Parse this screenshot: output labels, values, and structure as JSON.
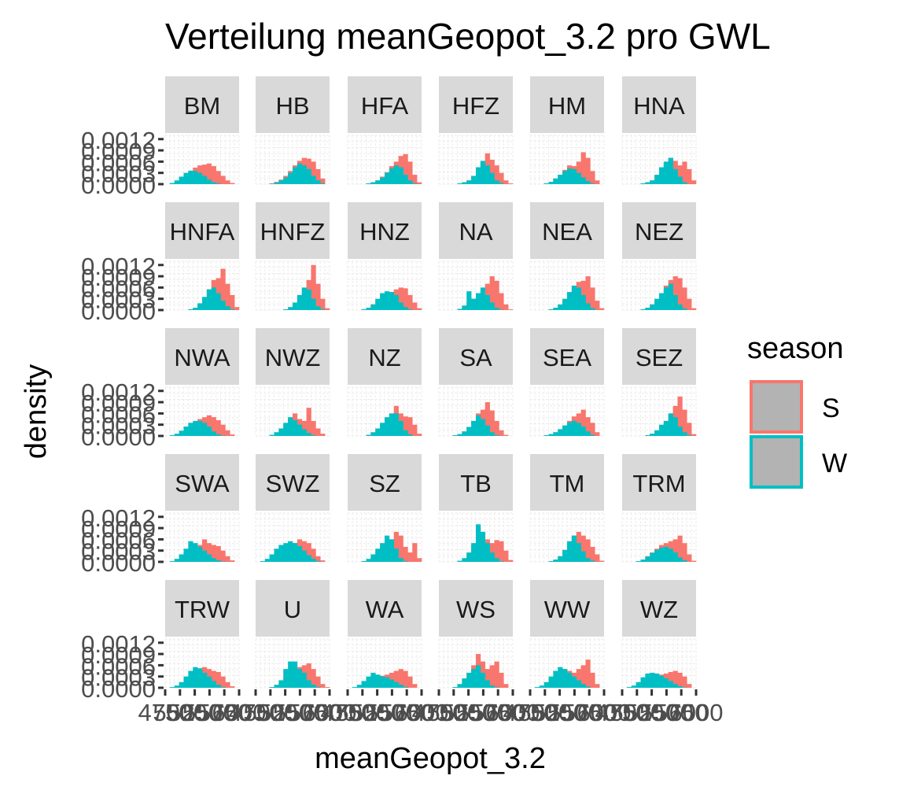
{
  "chart_data": {
    "type": "histogram",
    "facet_type": "wrap",
    "ncol": 6,
    "title": "Verteilung meanGeopot_3.2 pro GWL",
    "xlabel": "meanGeopot_3.2",
    "ylabel": "density",
    "legend": {
      "title": "season",
      "position": "right",
      "entries": [
        {
          "key": "S",
          "color": "#F8766D"
        },
        {
          "key": "W",
          "color": "#00BFC4"
        }
      ]
    },
    "colors": {
      "S": "#F8766D",
      "W": "#00BFC4",
      "panel_bg": "#FFFFFF",
      "strip_bg": "#D9D9D9",
      "grid": "#EBEBEB"
    },
    "grid": true,
    "xlim": [
      4750,
      6000
    ],
    "ylim": [
      0,
      0.0013
    ],
    "y_ticks": [
      0.0,
      0.0003,
      0.0006,
      0.0009,
      0.0012
    ],
    "y_tick_labels": [
      "0.0000",
      "0.0003",
      "0.0006",
      "0.0009",
      "0.0012"
    ],
    "x_ticks": [
      4750,
      5000,
      5250,
      5500,
      5750,
      6000
    ],
    "x_tick_labels": [
      "4750",
      "5000",
      "5250",
      "5500",
      "5750",
      "6000"
    ],
    "bin_count": 16,
    "panels": [
      {
        "name": "BM",
        "S": [
          0,
          0,
          3e-05,
          8e-05,
          0.00018,
          0.00032,
          0.00044,
          0.0005,
          0.00052,
          0.00055,
          0.00048,
          0.00035,
          0.00022,
          0.0001,
          3e-05,
          0
        ],
        "W": [
          0,
          3e-05,
          0.0001,
          0.0002,
          0.0003,
          0.00036,
          0.00035,
          0.0003,
          0.00022,
          0.00012,
          5e-05,
          2e-05,
          0,
          0,
          0,
          0
        ]
      },
      {
        "name": "HB",
        "S": [
          0,
          0,
          0,
          2e-05,
          6e-05,
          0.00012,
          0.00022,
          0.00035,
          0.0005,
          0.00062,
          0.0007,
          0.00068,
          0.0006,
          0.0004,
          0.00015,
          0
        ],
        "W": [
          0,
          0,
          0,
          1e-05,
          4e-05,
          0.0001,
          0.00018,
          0.0003,
          0.00045,
          0.00055,
          0.0005,
          0.0004,
          0.00022,
          0.0001,
          2e-05,
          0
        ]
      },
      {
        "name": "HFA",
        "S": [
          0,
          0,
          0,
          0,
          2e-05,
          5e-05,
          0.0001,
          0.0002,
          0.00032,
          0.00048,
          0.0006,
          0.00075,
          0.0008,
          0.0006,
          0.00025,
          5e-05
        ],
        "W": [
          0,
          0,
          0,
          0,
          2e-05,
          5e-05,
          0.0001,
          0.00018,
          0.0003,
          0.00042,
          0.0005,
          0.00045,
          0.00025,
          0.0001,
          2e-05,
          0
        ]
      },
      {
        "name": "HFZ",
        "S": [
          0,
          0,
          0,
          0,
          2e-05,
          5e-05,
          0.0001,
          0.00022,
          0.00038,
          0.0006,
          0.00082,
          0.00065,
          0.0005,
          0.0003,
          0.0001,
          2e-05
        ],
        "W": [
          0,
          0,
          0,
          0,
          2e-05,
          5e-05,
          0.0001,
          0.00022,
          0.00045,
          0.00062,
          0.0005,
          0.0003,
          0.0001,
          3e-05,
          0,
          0
        ]
      },
      {
        "name": "HM",
        "S": [
          0,
          0,
          0,
          2e-05,
          6e-05,
          0.00015,
          0.00025,
          0.00038,
          0.0005,
          0.00048,
          0.0006,
          0.00085,
          0.0007,
          0.00035,
          0.0001,
          0
        ],
        "W": [
          0,
          0,
          0,
          2e-05,
          6e-05,
          0.00015,
          0.00025,
          0.00035,
          0.00042,
          0.0004,
          0.0003,
          0.00018,
          8e-05,
          2e-05,
          0,
          0
        ]
      },
      {
        "name": "HNA",
        "S": [
          0,
          0,
          0,
          0,
          2e-05,
          5e-05,
          0.0001,
          0.00022,
          0.0004,
          0.00055,
          0.0007,
          0.00062,
          0.0005,
          0.0006,
          0.0004,
          0.0001
        ],
        "W": [
          0,
          0,
          0,
          0,
          2e-05,
          5e-05,
          0.0001,
          0.00025,
          0.00045,
          0.0006,
          0.0007,
          0.0004,
          0.0002,
          5e-05,
          0,
          0
        ]
      },
      {
        "name": "HNFA",
        "S": [
          0,
          0,
          0,
          0,
          0,
          2e-05,
          6e-05,
          0.00015,
          0.0003,
          0.00055,
          0.0008,
          0.00085,
          0.0011,
          0.0007,
          0.0004,
          8e-05
        ],
        "W": [
          0,
          0,
          0,
          0,
          0,
          2e-05,
          6e-05,
          0.00018,
          0.00035,
          0.00055,
          0.0006,
          0.00045,
          0.00025,
          0.0001,
          2e-05,
          0
        ]
      },
      {
        "name": "HNFZ",
        "S": [
          0,
          0,
          0,
          0,
          0,
          0,
          2e-05,
          6e-05,
          0.00015,
          0.0003,
          0.0005,
          0.0008,
          0.0012,
          0.0007,
          0.0003,
          5e-05
        ],
        "W": [
          0,
          0,
          0,
          0,
          0,
          0,
          2e-05,
          8e-05,
          0.0002,
          0.0004,
          0.0006,
          0.00055,
          0.0003,
          0.0001,
          2e-05,
          0
        ]
      },
      {
        "name": "HNZ",
        "S": [
          0,
          0,
          0,
          2e-05,
          6e-05,
          0.00015,
          0.00028,
          0.0004,
          0.00045,
          0.00048,
          0.00055,
          0.0006,
          0.00058,
          0.0004,
          0.0002,
          5e-05
        ],
        "W": [
          0,
          0,
          0,
          2e-05,
          6e-05,
          0.00015,
          0.0003,
          0.00045,
          0.0005,
          0.00048,
          0.0004,
          0.0002,
          8e-05,
          2e-05,
          0,
          0
        ]
      },
      {
        "name": "NA",
        "S": [
          0,
          0,
          0,
          0,
          3e-05,
          0.0001,
          0.0002,
          0.0003,
          0.0004,
          0.0005,
          0.0007,
          0.0009,
          0.00078,
          0.00045,
          0.00015,
          2e-05
        ],
        "W": [
          0,
          0,
          0,
          0,
          3e-05,
          0.00012,
          0.0005,
          0.0003,
          0.00045,
          0.0006,
          0.0004,
          0.0002,
          6e-05,
          1e-05,
          0,
          0
        ]
      },
      {
        "name": "NEA",
        "S": [
          0,
          0,
          0,
          0,
          2e-05,
          6e-05,
          0.00014,
          0.00028,
          0.00042,
          0.0006,
          0.00075,
          0.00078,
          0.0009,
          0.0006,
          0.00025,
          5e-05
        ],
        "W": [
          0,
          0,
          0,
          0,
          2e-05,
          6e-05,
          0.00015,
          0.0003,
          0.00048,
          0.00065,
          0.0006,
          0.0004,
          0.00018,
          5e-05,
          0,
          0
        ]
      },
      {
        "name": "NEZ",
        "S": [
          0,
          0,
          0,
          0,
          2e-05,
          6e-05,
          0.00015,
          0.00028,
          0.00045,
          0.00065,
          0.0008,
          0.0009,
          0.00085,
          0.0006,
          0.0003,
          5e-05
        ],
        "W": [
          0,
          0,
          0,
          0,
          2e-05,
          6e-05,
          0.00015,
          0.0003,
          0.00045,
          0.0006,
          0.0007,
          0.0004,
          0.00015,
          4e-05,
          0,
          0
        ]
      },
      {
        "name": "NWA",
        "S": [
          0,
          0,
          2e-05,
          6e-05,
          0.00014,
          0.00025,
          0.00036,
          0.00045,
          0.0005,
          0.00055,
          0.0005,
          0.00042,
          0.0003,
          0.00015,
          4e-05,
          0
        ],
        "W": [
          0,
          2e-05,
          6e-05,
          0.00014,
          0.00025,
          0.00035,
          0.0004,
          0.0004,
          0.00035,
          0.00025,
          0.00012,
          4e-05,
          1e-05,
          0,
          0,
          0
        ]
      },
      {
        "name": "NWZ",
        "S": [
          0,
          0,
          0,
          2e-05,
          8e-05,
          0.00018,
          0.00032,
          0.00048,
          0.0006,
          0.00045,
          0.0004,
          0.00075,
          0.0004,
          0.0002,
          6e-05,
          0
        ],
        "W": [
          0,
          0,
          0,
          3e-05,
          0.0001,
          0.0002,
          0.00035,
          0.0005,
          0.00042,
          0.0003,
          0.00018,
          8e-05,
          2e-05,
          0,
          0,
          0
        ]
      },
      {
        "name": "NZ",
        "S": [
          0,
          0,
          0,
          0,
          3e-05,
          8e-05,
          0.00018,
          0.0003,
          0.00045,
          0.0006,
          0.0008,
          0.0006,
          0.00052,
          0.0005,
          0.0003,
          6e-05
        ],
        "W": [
          0,
          0,
          0,
          0,
          3e-05,
          0.0001,
          0.0002,
          0.00035,
          0.0005,
          0.0006,
          0.0006,
          0.0004,
          0.00015,
          4e-05,
          0,
          0
        ]
      },
      {
        "name": "SA",
        "S": [
          0,
          0,
          0,
          2e-05,
          5e-05,
          0.00012,
          0.00024,
          0.0004,
          0.0006,
          0.0007,
          0.0009,
          0.00068,
          0.0004,
          0.00015,
          3e-05,
          0
        ],
        "W": [
          0,
          0,
          0,
          2e-05,
          5e-05,
          0.00012,
          0.00024,
          0.0004,
          0.00055,
          0.00045,
          0.00028,
          0.0001,
          2e-05,
          0,
          0,
          0
        ]
      },
      {
        "name": "SEA",
        "S": [
          0,
          0,
          0,
          2e-05,
          5e-05,
          0.0001,
          0.00018,
          0.00028,
          0.0004,
          0.00052,
          0.0006,
          0.0007,
          0.0005,
          0.00035,
          0.0001,
          0
        ],
        "W": [
          0,
          0,
          0,
          2e-05,
          5e-05,
          0.0001,
          0.00018,
          0.00028,
          0.00036,
          0.0004,
          0.00035,
          0.00025,
          0.00012,
          3e-05,
          0,
          0
        ]
      },
      {
        "name": "SEZ",
        "S": [
          0,
          0,
          0,
          0,
          0,
          2e-05,
          6e-05,
          0.00014,
          0.00028,
          0.0004,
          0.0006,
          0.0008,
          0.00105,
          0.0007,
          0.00035,
          5e-05
        ],
        "W": [
          0,
          0,
          0,
          0,
          0,
          2e-05,
          6e-05,
          0.00015,
          0.0003,
          0.0004,
          0.0006,
          0.0005,
          0.00025,
          0.0001,
          2e-05,
          0
        ]
      },
      {
        "name": "SWA",
        "S": [
          0,
          0,
          2e-05,
          8e-05,
          0.0002,
          0.0003,
          0.00038,
          0.00045,
          0.0006,
          0.0005,
          0.00045,
          0.00042,
          0.0003,
          0.00015,
          4e-05,
          0
        ],
        "W": [
          0,
          2e-05,
          8e-05,
          0.0002,
          0.00035,
          0.00055,
          0.0005,
          0.0004,
          0.0003,
          0.0002,
          0.0001,
          4e-05,
          1e-05,
          0,
          0,
          0
        ]
      },
      {
        "name": "SWZ",
        "S": [
          0,
          0,
          2e-05,
          8e-05,
          0.00018,
          0.00028,
          0.0004,
          0.00045,
          0.0005,
          0.0006,
          0.00055,
          0.0005,
          0.00035,
          0.00015,
          4e-05,
          0
        ],
        "W": [
          0,
          2e-05,
          8e-05,
          0.0002,
          0.00035,
          0.00045,
          0.0005,
          0.00055,
          0.0005,
          0.00042,
          0.0003,
          0.00018,
          8e-05,
          2e-05,
          0,
          0
        ]
      },
      {
        "name": "SZ",
        "S": [
          0,
          0,
          0,
          2e-05,
          6e-05,
          0.00015,
          0.00028,
          0.0004,
          0.0005,
          0.0006,
          0.0008,
          0.0007,
          0.0004,
          0.00025,
          0.0005,
          0.0001
        ],
        "W": [
          0,
          0,
          0,
          2e-05,
          8e-05,
          0.0002,
          0.00035,
          0.0005,
          0.0007,
          0.0006,
          0.00035,
          0.0001,
          2e-05,
          0,
          0,
          0
        ]
      },
      {
        "name": "TB",
        "S": [
          0,
          0,
          0,
          0,
          2e-05,
          8e-05,
          0.0002,
          0.00045,
          0.0009,
          0.0007,
          0.0006,
          0.0005,
          0.00058,
          0.00055,
          0.0003,
          5e-05
        ],
        "W": [
          0,
          0,
          0,
          0,
          3e-05,
          0.0001,
          0.00025,
          0.0005,
          0.001,
          0.0008,
          0.0005,
          0.00025,
          0.0001,
          2e-05,
          0,
          0
        ]
      },
      {
        "name": "TM",
        "S": [
          0,
          0,
          0,
          0,
          2e-05,
          6e-05,
          0.00015,
          0.0003,
          0.0005,
          0.0007,
          0.0008,
          0.0007,
          0.0006,
          0.0004,
          0.0002,
          3e-05
        ],
        "W": [
          0,
          0,
          0,
          0,
          2e-05,
          6e-05,
          0.00015,
          0.00032,
          0.00055,
          0.0007,
          0.0005,
          0.00028,
          0.0001,
          3e-05,
          0,
          0
        ]
      },
      {
        "name": "TRM",
        "S": [
          0,
          0,
          0,
          2e-05,
          6e-05,
          0.00015,
          0.00025,
          0.00035,
          0.00045,
          0.0005,
          0.00055,
          0.0006,
          0.0007,
          0.0005,
          0.0002,
          3e-05
        ],
        "W": [
          0,
          0,
          0,
          2e-05,
          6e-05,
          0.00014,
          0.00024,
          0.00032,
          0.00038,
          0.0004,
          0.00035,
          0.00025,
          0.00012,
          4e-05,
          0,
          0
        ]
      },
      {
        "name": "TRW",
        "S": [
          0,
          0,
          2e-05,
          6e-05,
          0.00015,
          0.00028,
          0.0004,
          0.0005,
          0.00055,
          0.0005,
          0.00045,
          0.00042,
          0.0003,
          0.00015,
          4e-05,
          0
        ],
        "W": [
          0,
          2e-05,
          6e-05,
          0.00015,
          0.0003,
          0.00045,
          0.00055,
          0.00052,
          0.0004,
          0.0003,
          0.00018,
          8e-05,
          2e-05,
          0,
          0,
          0
        ]
      },
      {
        "name": "U",
        "S": [
          0,
          0,
          0,
          2e-05,
          6e-05,
          0.00015,
          0.0003,
          0.00045,
          0.0005,
          0.00055,
          0.0006,
          0.00065,
          0.0005,
          0.0003,
          0.0001,
          2e-05
        ],
        "W": [
          0,
          0,
          0,
          2e-05,
          8e-05,
          0.0002,
          0.0005,
          0.0007,
          0.0007,
          0.0005,
          0.0004,
          0.0002,
          8e-05,
          2e-05,
          0,
          0
        ]
      },
      {
        "name": "WA",
        "S": [
          0,
          0,
          2e-05,
          6e-05,
          0.00012,
          0.0002,
          0.00028,
          0.00032,
          0.00035,
          0.0004,
          0.00045,
          0.0005,
          0.00045,
          0.0003,
          0.0001,
          0
        ],
        "W": [
          0,
          2e-05,
          8e-05,
          0.00018,
          0.0003,
          0.0004,
          0.00035,
          0.0003,
          0.00028,
          0.00022,
          0.00015,
          8e-05,
          2e-05,
          0,
          0,
          0
        ]
      },
      {
        "name": "WS",
        "S": [
          0,
          0,
          0,
          2e-05,
          8e-05,
          0.0002,
          0.0004,
          0.0006,
          0.0009,
          0.0007,
          0.0005,
          0.0006,
          0.0007,
          0.0004,
          0.0001,
          0
        ],
        "W": [
          0,
          0,
          0,
          2e-05,
          0.0001,
          0.00025,
          0.0004,
          0.0005,
          0.0006,
          0.0004,
          0.0002,
          6e-05,
          1e-05,
          0,
          0,
          0
        ]
      },
      {
        "name": "WW",
        "S": [
          0,
          0,
          2e-05,
          6e-05,
          0.00015,
          0.0003,
          0.00045,
          0.0005,
          0.00045,
          0.0004,
          0.0005,
          0.0006,
          0.00075,
          0.0004,
          0.0001,
          0
        ],
        "W": [
          0,
          2e-05,
          6e-05,
          0.00015,
          0.0003,
          0.00045,
          0.00055,
          0.0005,
          0.0004,
          0.0003,
          0.0002,
          0.0001,
          3e-05,
          0,
          0,
          0
        ]
      },
      {
        "name": "WZ",
        "S": [
          0,
          0,
          2e-05,
          6e-05,
          0.00012,
          0.0002,
          0.00028,
          0.00032,
          0.00035,
          0.00038,
          0.00042,
          0.00045,
          0.0004,
          0.0003,
          0.0001,
          0
        ],
        "W": [
          0,
          2e-05,
          6e-05,
          0.00015,
          0.00028,
          0.00038,
          0.0004,
          0.00038,
          0.00032,
          0.00025,
          0.00018,
          0.0001,
          4e-05,
          1e-05,
          0,
          0
        ]
      }
    ]
  }
}
